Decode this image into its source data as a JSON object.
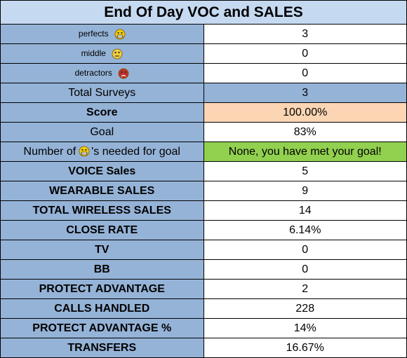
{
  "header": {
    "title": "End Of Day VOC and SALES"
  },
  "table": {
    "rows": [
      [
        "perfects",
        3
      ],
      [
        "middle",
        0
      ],
      [
        "detractors",
        0
      ],
      [
        "Total Surveys",
        3
      ],
      [
        "Score",
        "100.00%"
      ],
      [
        "Goal",
        "83%"
      ],
      [
        {
          "before": "Number of",
          "after": "'s needed for goal"
        },
        "None, you have met your goal!"
      ],
      [
        "VOICE Sales",
        5
      ],
      [
        "WEARABLE SALES",
        9
      ],
      [
        "TOTAL WIRELESS SALES",
        14
      ],
      [
        "CLOSE RATE",
        "6.14%"
      ],
      [
        "TV",
        0
      ],
      [
        "BB",
        0
      ],
      [
        "PROTECT ADVANTAGE",
        2
      ],
      [
        "CALLS HANDLED",
        228
      ],
      [
        "PROTECT ADVANTAGE %",
        "14%"
      ],
      [
        "TRANSFERS",
        "16.67%"
      ]
    ]
  }
}
